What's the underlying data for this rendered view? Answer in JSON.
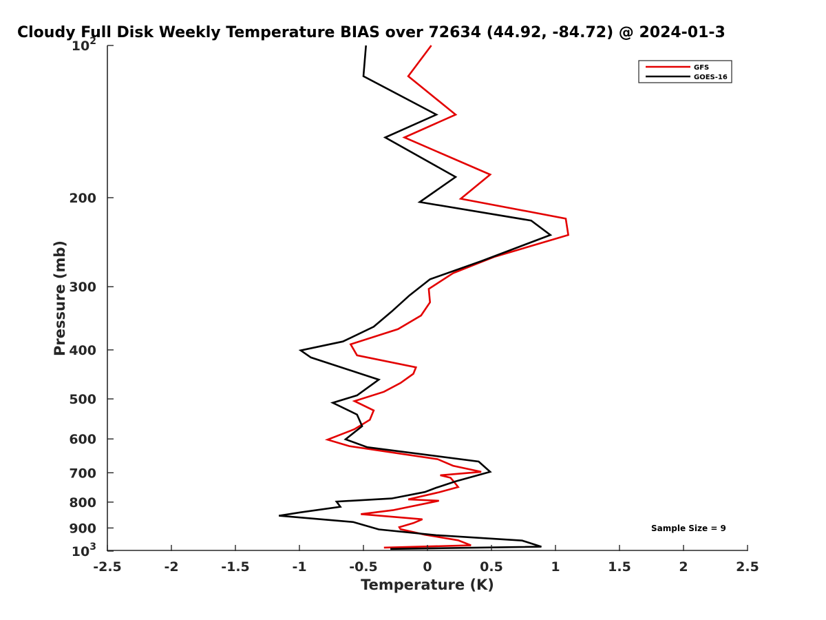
{
  "chart_data": {
    "type": "line",
    "title": "Cloudy Full Disk Weekly Temperature BIAS over 72634 (44.92, -84.72) @ 2024-01-3",
    "xlabel": "Temperature (K)",
    "ylabel": "Pressure (mb)",
    "xlim": [
      -2.5,
      2.5
    ],
    "ylim": [
      100,
      1000
    ],
    "y_scale": "log",
    "y_reversed": true,
    "grid": false,
    "legend_position": "top-right",
    "x_ticks": [
      {
        "value": -2.5,
        "label": "-2.5"
      },
      {
        "value": -2,
        "label": "-2"
      },
      {
        "value": -1.5,
        "label": "-1.5"
      },
      {
        "value": -1,
        "label": "-1"
      },
      {
        "value": -0.5,
        "label": "-0.5"
      },
      {
        "value": 0,
        "label": "0"
      },
      {
        "value": 0.5,
        "label": "0.5"
      },
      {
        "value": 1,
        "label": "1"
      },
      {
        "value": 1.5,
        "label": "1.5"
      },
      {
        "value": 2,
        "label": "2"
      },
      {
        "value": 2.5,
        "label": "2.5"
      }
    ],
    "y_ticks": [
      {
        "value": 100,
        "base": "10",
        "exp": "2"
      },
      {
        "value": 200,
        "label": "200"
      },
      {
        "value": 300,
        "label": "300"
      },
      {
        "value": 400,
        "label": "400"
      },
      {
        "value": 500,
        "label": "500"
      },
      {
        "value": 600,
        "label": "600"
      },
      {
        "value": 700,
        "label": "700"
      },
      {
        "value": 800,
        "label": "800"
      },
      {
        "value": 900,
        "label": "900"
      },
      {
        "value": 1000,
        "base": "10",
        "exp": "3"
      }
    ],
    "series": [
      {
        "name": "GFS",
        "color": "#e30000",
        "points": [
          [
            0.03,
            100
          ],
          [
            -0.15,
            115
          ],
          [
            0.22,
            137
          ],
          [
            -0.18,
            152
          ],
          [
            0.49,
            180
          ],
          [
            0.26,
            201
          ],
          [
            1.08,
            220
          ],
          [
            1.1,
            237
          ],
          [
            0.52,
            262
          ],
          [
            0.2,
            282
          ],
          [
            0.01,
            303
          ],
          [
            0.02,
            322
          ],
          [
            -0.05,
            342
          ],
          [
            -0.23,
            364
          ],
          [
            -0.6,
            390
          ],
          [
            -0.55,
            410
          ],
          [
            -0.09,
            433
          ],
          [
            -0.11,
            446
          ],
          [
            -0.21,
            465
          ],
          [
            -0.34,
            484
          ],
          [
            -0.57,
            505
          ],
          [
            -0.42,
            527
          ],
          [
            -0.45,
            550
          ],
          [
            -0.57,
            574
          ],
          [
            -0.78,
            602
          ],
          [
            -0.61,
            620
          ],
          [
            0.08,
            658
          ],
          [
            0.2,
            678
          ],
          [
            0.42,
            697
          ],
          [
            0.1,
            708
          ],
          [
            0.18,
            716
          ],
          [
            0.21,
            731
          ],
          [
            0.24,
            747
          ],
          [
            0.09,
            765
          ],
          [
            -0.15,
            790
          ],
          [
            0.09,
            795
          ],
          [
            -0.27,
            830
          ],
          [
            -0.52,
            845
          ],
          [
            -0.04,
            865
          ],
          [
            -0.11,
            880
          ],
          [
            -0.22,
            897
          ],
          [
            -0.21,
            905
          ],
          [
            -0.02,
            928
          ],
          [
            0.24,
            952
          ],
          [
            0.34,
            974
          ],
          [
            -0.34,
            984
          ]
        ]
      },
      {
        "name": "GOES-16",
        "color": "#000000",
        "points": [
          [
            -0.48,
            100
          ],
          [
            -0.5,
            115
          ],
          [
            0.07,
            137
          ],
          [
            -0.33,
            152
          ],
          [
            0.22,
            182
          ],
          [
            -0.06,
            204
          ],
          [
            0.81,
            222
          ],
          [
            0.96,
            237
          ],
          [
            0.42,
            267
          ],
          [
            0.02,
            290
          ],
          [
            -0.14,
            312
          ],
          [
            -0.28,
            336
          ],
          [
            -0.42,
            360
          ],
          [
            -0.66,
            385
          ],
          [
            -0.99,
            401
          ],
          [
            -0.91,
            414
          ],
          [
            -0.52,
            446
          ],
          [
            -0.38,
            458
          ],
          [
            -0.55,
            492
          ],
          [
            -0.74,
            509
          ],
          [
            -0.55,
            537
          ],
          [
            -0.51,
            566
          ],
          [
            -0.64,
            601
          ],
          [
            -0.47,
            623
          ],
          [
            0.4,
            665
          ],
          [
            0.49,
            697
          ],
          [
            0.22,
            728
          ],
          [
            0.07,
            749
          ],
          [
            -0.02,
            764
          ],
          [
            -0.28,
            787
          ],
          [
            -0.71,
            798
          ],
          [
            -0.68,
            817
          ],
          [
            -0.99,
            838
          ],
          [
            -1.16,
            851
          ],
          [
            -0.58,
            876
          ],
          [
            -0.38,
            906
          ],
          [
            0.07,
            930
          ],
          [
            0.74,
            953
          ],
          [
            0.89,
            980
          ],
          [
            -0.29,
            990
          ]
        ]
      }
    ],
    "annotations": [
      "Sample Size = 9"
    ]
  }
}
